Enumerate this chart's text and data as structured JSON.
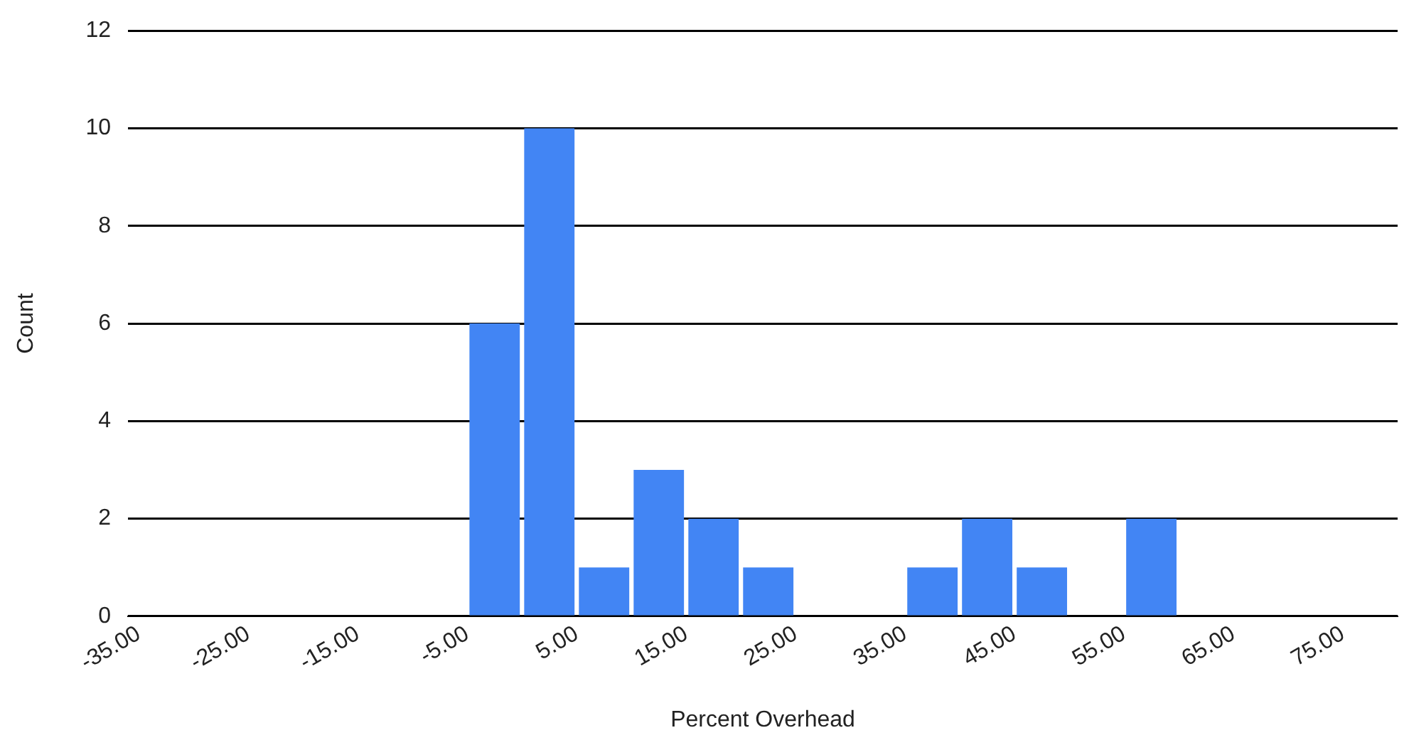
{
  "chart_data": {
    "type": "histogram",
    "xlabel": "Percent Overhead",
    "ylabel": "Count",
    "bins": [
      -5,
      0,
      5,
      10,
      15,
      20,
      25,
      30,
      35,
      40,
      45,
      50,
      55,
      60
    ],
    "values": [
      6,
      10,
      1,
      3,
      2,
      1,
      0,
      0,
      1,
      2,
      1,
      0,
      2
    ],
    "color": "#4285f4",
    "xlim": [
      -36,
      80
    ],
    "xticks": [
      {
        "value": -35,
        "label": "-35.00"
      },
      {
        "value": -25,
        "label": "-25.00"
      },
      {
        "value": -15,
        "label": "-15.00"
      },
      {
        "value": -5,
        "label": "-5.00"
      },
      {
        "value": 5,
        "label": "5.00"
      },
      {
        "value": 15,
        "label": "15.00"
      },
      {
        "value": 25,
        "label": "25.00"
      },
      {
        "value": 35,
        "label": "35.00"
      },
      {
        "value": 45,
        "label": "45.00"
      },
      {
        "value": 55,
        "label": "55.00"
      },
      {
        "value": 65,
        "label": "65.00"
      },
      {
        "value": 75,
        "label": "75.00"
      }
    ],
    "ylim": [
      0,
      12
    ],
    "yticks": [
      0,
      2,
      4,
      6,
      8,
      10,
      12
    ],
    "grid": "y",
    "legend": false
  }
}
